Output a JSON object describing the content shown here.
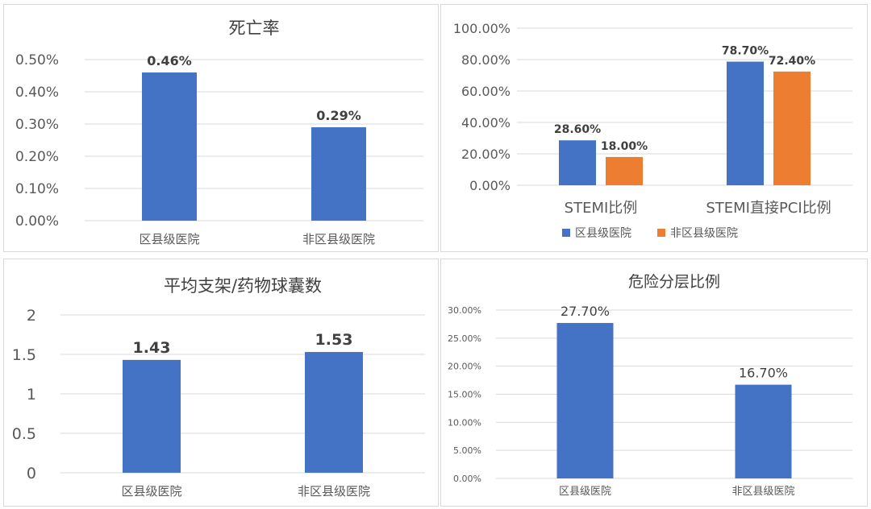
{
  "colors": {
    "blue": "#4472c4",
    "orange": "#ed7d31",
    "grid": "#d9d9d9",
    "text": "#595959",
    "label": "#404040"
  },
  "chart_data": [
    {
      "type": "bar",
      "title": "死亡率",
      "categories": [
        "区县级医院",
        "非区县级医院"
      ],
      "series": [
        {
          "values": [
            0.46,
            0.29
          ]
        }
      ],
      "data_labels": [
        "0.46%",
        "0.29%"
      ],
      "yticks": [
        "0.00%",
        "0.10%",
        "0.20%",
        "0.30%",
        "0.40%",
        "0.50%"
      ],
      "ylim": [
        0,
        0.5
      ],
      "grid": true,
      "legend": []
    },
    {
      "type": "bar",
      "title": "",
      "categories": [
        "STEMI比例",
        "STEMI直接PCI比例"
      ],
      "series": [
        {
          "name": "区县级医院",
          "values": [
            28.6,
            78.7
          ]
        },
        {
          "name": "非区县级医院",
          "values": [
            18.0,
            72.4
          ]
        }
      ],
      "data_labels": [
        [
          "28.60%",
          "78.70%"
        ],
        [
          "18.00%",
          "72.40%"
        ]
      ],
      "yticks": [
        "0.00%",
        "20.00%",
        "40.00%",
        "60.00%",
        "80.00%",
        "100.00%"
      ],
      "ylim": [
        0,
        100
      ],
      "grid": true,
      "legend": "bottom"
    },
    {
      "type": "bar",
      "title": "平均支架/药物球囊数",
      "categories": [
        "区县级医院",
        "非区县级医院"
      ],
      "series": [
        {
          "values": [
            1.43,
            1.53
          ]
        }
      ],
      "data_labels": [
        "1.43",
        "1.53"
      ],
      "yticks": [
        "0",
        "0.5",
        "1",
        "1.5",
        "2"
      ],
      "ylim": [
        0,
        2
      ],
      "grid": true,
      "legend": []
    },
    {
      "type": "bar",
      "title": "危险分层比例",
      "categories": [
        "区县级医院",
        "非区县级医院"
      ],
      "series": [
        {
          "values": [
            27.7,
            16.7
          ]
        }
      ],
      "data_labels": [
        "27.70%",
        "16.70%"
      ],
      "yticks": [
        "0.00%",
        "5.00%",
        "10.00%",
        "15.00%",
        "20.00%",
        "25.00%",
        "30.00%"
      ],
      "ylim": [
        0,
        30
      ],
      "grid": true,
      "legend": []
    }
  ]
}
